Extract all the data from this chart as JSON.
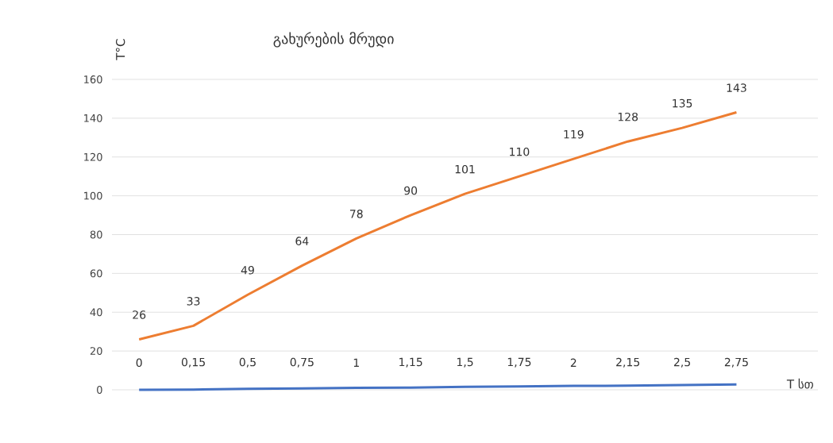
{
  "chart_data": {
    "type": "line",
    "title": "გახურების მრუდი",
    "xlabel": "T სთ",
    "ylabel": "T°C",
    "categories": [
      "0",
      "0,15",
      "0,5",
      "0,75",
      "1",
      "1,15",
      "1,5",
      "1,75",
      "2",
      "2,15",
      "2,5",
      "2,75"
    ],
    "series": [
      {
        "color": "#4472c4",
        "values": [
          0,
          0.15,
          0.5,
          0.75,
          1,
          1.15,
          1.5,
          1.75,
          2,
          2.15,
          2.5,
          2.75
        ]
      },
      {
        "color": "#ed7d31",
        "values": [
          26,
          33,
          49,
          64,
          78,
          90,
          101,
          110,
          119,
          128,
          135,
          143
        ],
        "value_labels": [
          "26",
          "33",
          "49",
          "64",
          "78",
          "90",
          "101",
          "110",
          "119",
          "128",
          "135",
          "143"
        ]
      }
    ],
    "ylim": [
      0,
      160
    ],
    "yticks": [
      0,
      20,
      40,
      60,
      80,
      100,
      120,
      140,
      160
    ],
    "grid": "y",
    "marker": "none",
    "line_style": "solid"
  }
}
